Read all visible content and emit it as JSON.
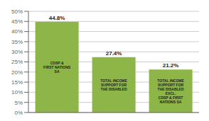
{
  "chart_data": {
    "type": "bar",
    "categories": [
      "CDSP &\nFIRST NATIONS\nSA",
      "TOTAL INCOME\nSUPPORT FOR\nTHE DISABLED",
      "TOTAL INCOME\nSUPPORT FOR\nTHE DISABLED\nEXCL.\nCDSP & FIRST\nNATIONS SA"
    ],
    "values": [
      44.8,
      27.4,
      21.2
    ],
    "value_labels": [
      "44.8%",
      "27.4%",
      "21.2%"
    ],
    "color": "#8db547",
    "ylim": [
      0,
      50
    ],
    "yticks": [
      {
        "value": 0,
        "label": "0%"
      },
      {
        "value": 5,
        "label": "5%"
      },
      {
        "value": 10,
        "label": "10%"
      },
      {
        "value": 15,
        "label": "15%"
      },
      {
        "value": 20,
        "label": "20%"
      },
      {
        "value": 25,
        "label": "25%"
      },
      {
        "value": 30,
        "label": "30%"
      },
      {
        "value": 35,
        "label": "35%"
      },
      {
        "value": 40,
        "label": "40%"
      },
      {
        "value": 45,
        "label": "45%"
      },
      {
        "value": 50,
        "label": "50%"
      }
    ],
    "grid": true,
    "data_labels": true,
    "tick_labels": "y"
  }
}
